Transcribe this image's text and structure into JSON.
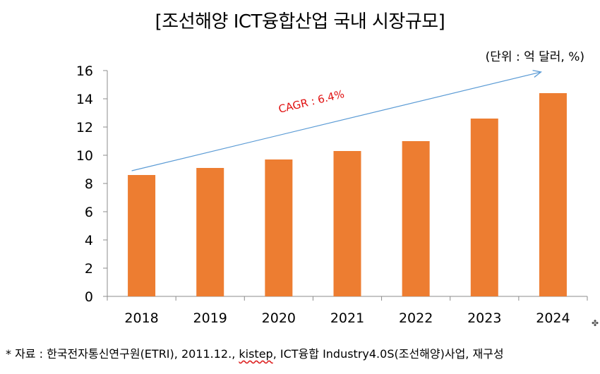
{
  "title": "[조선해양 ICT융합산업 국내 시장규모]",
  "unit_label": "(단위 : 억 달러, %)",
  "source_note": {
    "prefix": "* 자료 : 한국전자통신연구원(ETRI), 2011.12., ",
    "kistep": "kistep",
    "suffix": ", ICT융합 Industry4.0S(조선해양)사업, 재구성"
  },
  "chart_data": {
    "type": "bar",
    "title": "[조선해양 ICT융합산업 국내 시장규모]",
    "categories": [
      "2018",
      "2019",
      "2020",
      "2021",
      "2022",
      "2023",
      "2024"
    ],
    "values": [
      8.6,
      9.1,
      9.7,
      10.3,
      11.0,
      12.6,
      14.4
    ],
    "ylim": [
      0,
      16
    ],
    "yticks": [
      0,
      2,
      4,
      6,
      8,
      10,
      12,
      14,
      16
    ],
    "bar_color": "#ED7D31",
    "grid": false,
    "annotation": {
      "text": "CAGR : 6.4%",
      "color": "#FF0000",
      "arrow_color": "#5B9BD5",
      "arrow_from": {
        "x": "2018",
        "y": 8.9
      },
      "arrow_to": {
        "x": "2024",
        "y": 15.9
      }
    }
  }
}
